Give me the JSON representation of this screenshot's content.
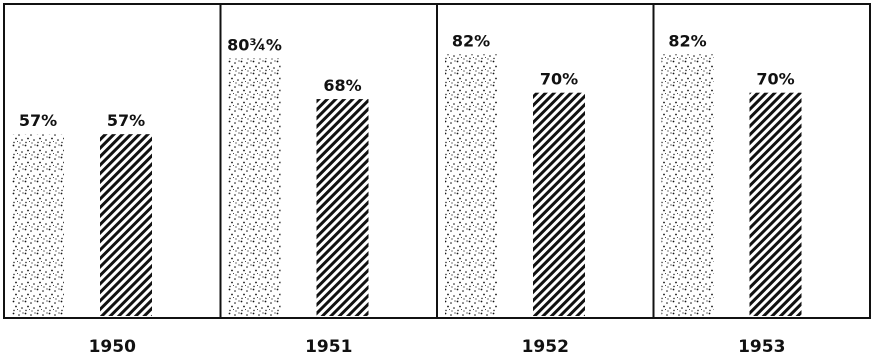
{
  "chart_data": {
    "type": "bar",
    "title": "",
    "xlabel": "",
    "ylabel": "",
    "ylim": [
      0,
      100
    ],
    "grid": false,
    "legend": "none",
    "categories": [
      "1950",
      "1951",
      "1952",
      "1953"
    ],
    "series": [
      {
        "pattern": "stipple",
        "values": [
          57,
          80.75,
          82,
          82
        ],
        "labels": [
          "57%",
          "80¾%",
          "82%",
          "82%"
        ]
      },
      {
        "pattern": "diagonal-hatch",
        "values": [
          57,
          68,
          70,
          70
        ],
        "labels": [
          "57%",
          "68%",
          "70%",
          "70%"
        ]
      }
    ]
  },
  "colors": {
    "ink": "#111111",
    "background": "#ffffff"
  }
}
